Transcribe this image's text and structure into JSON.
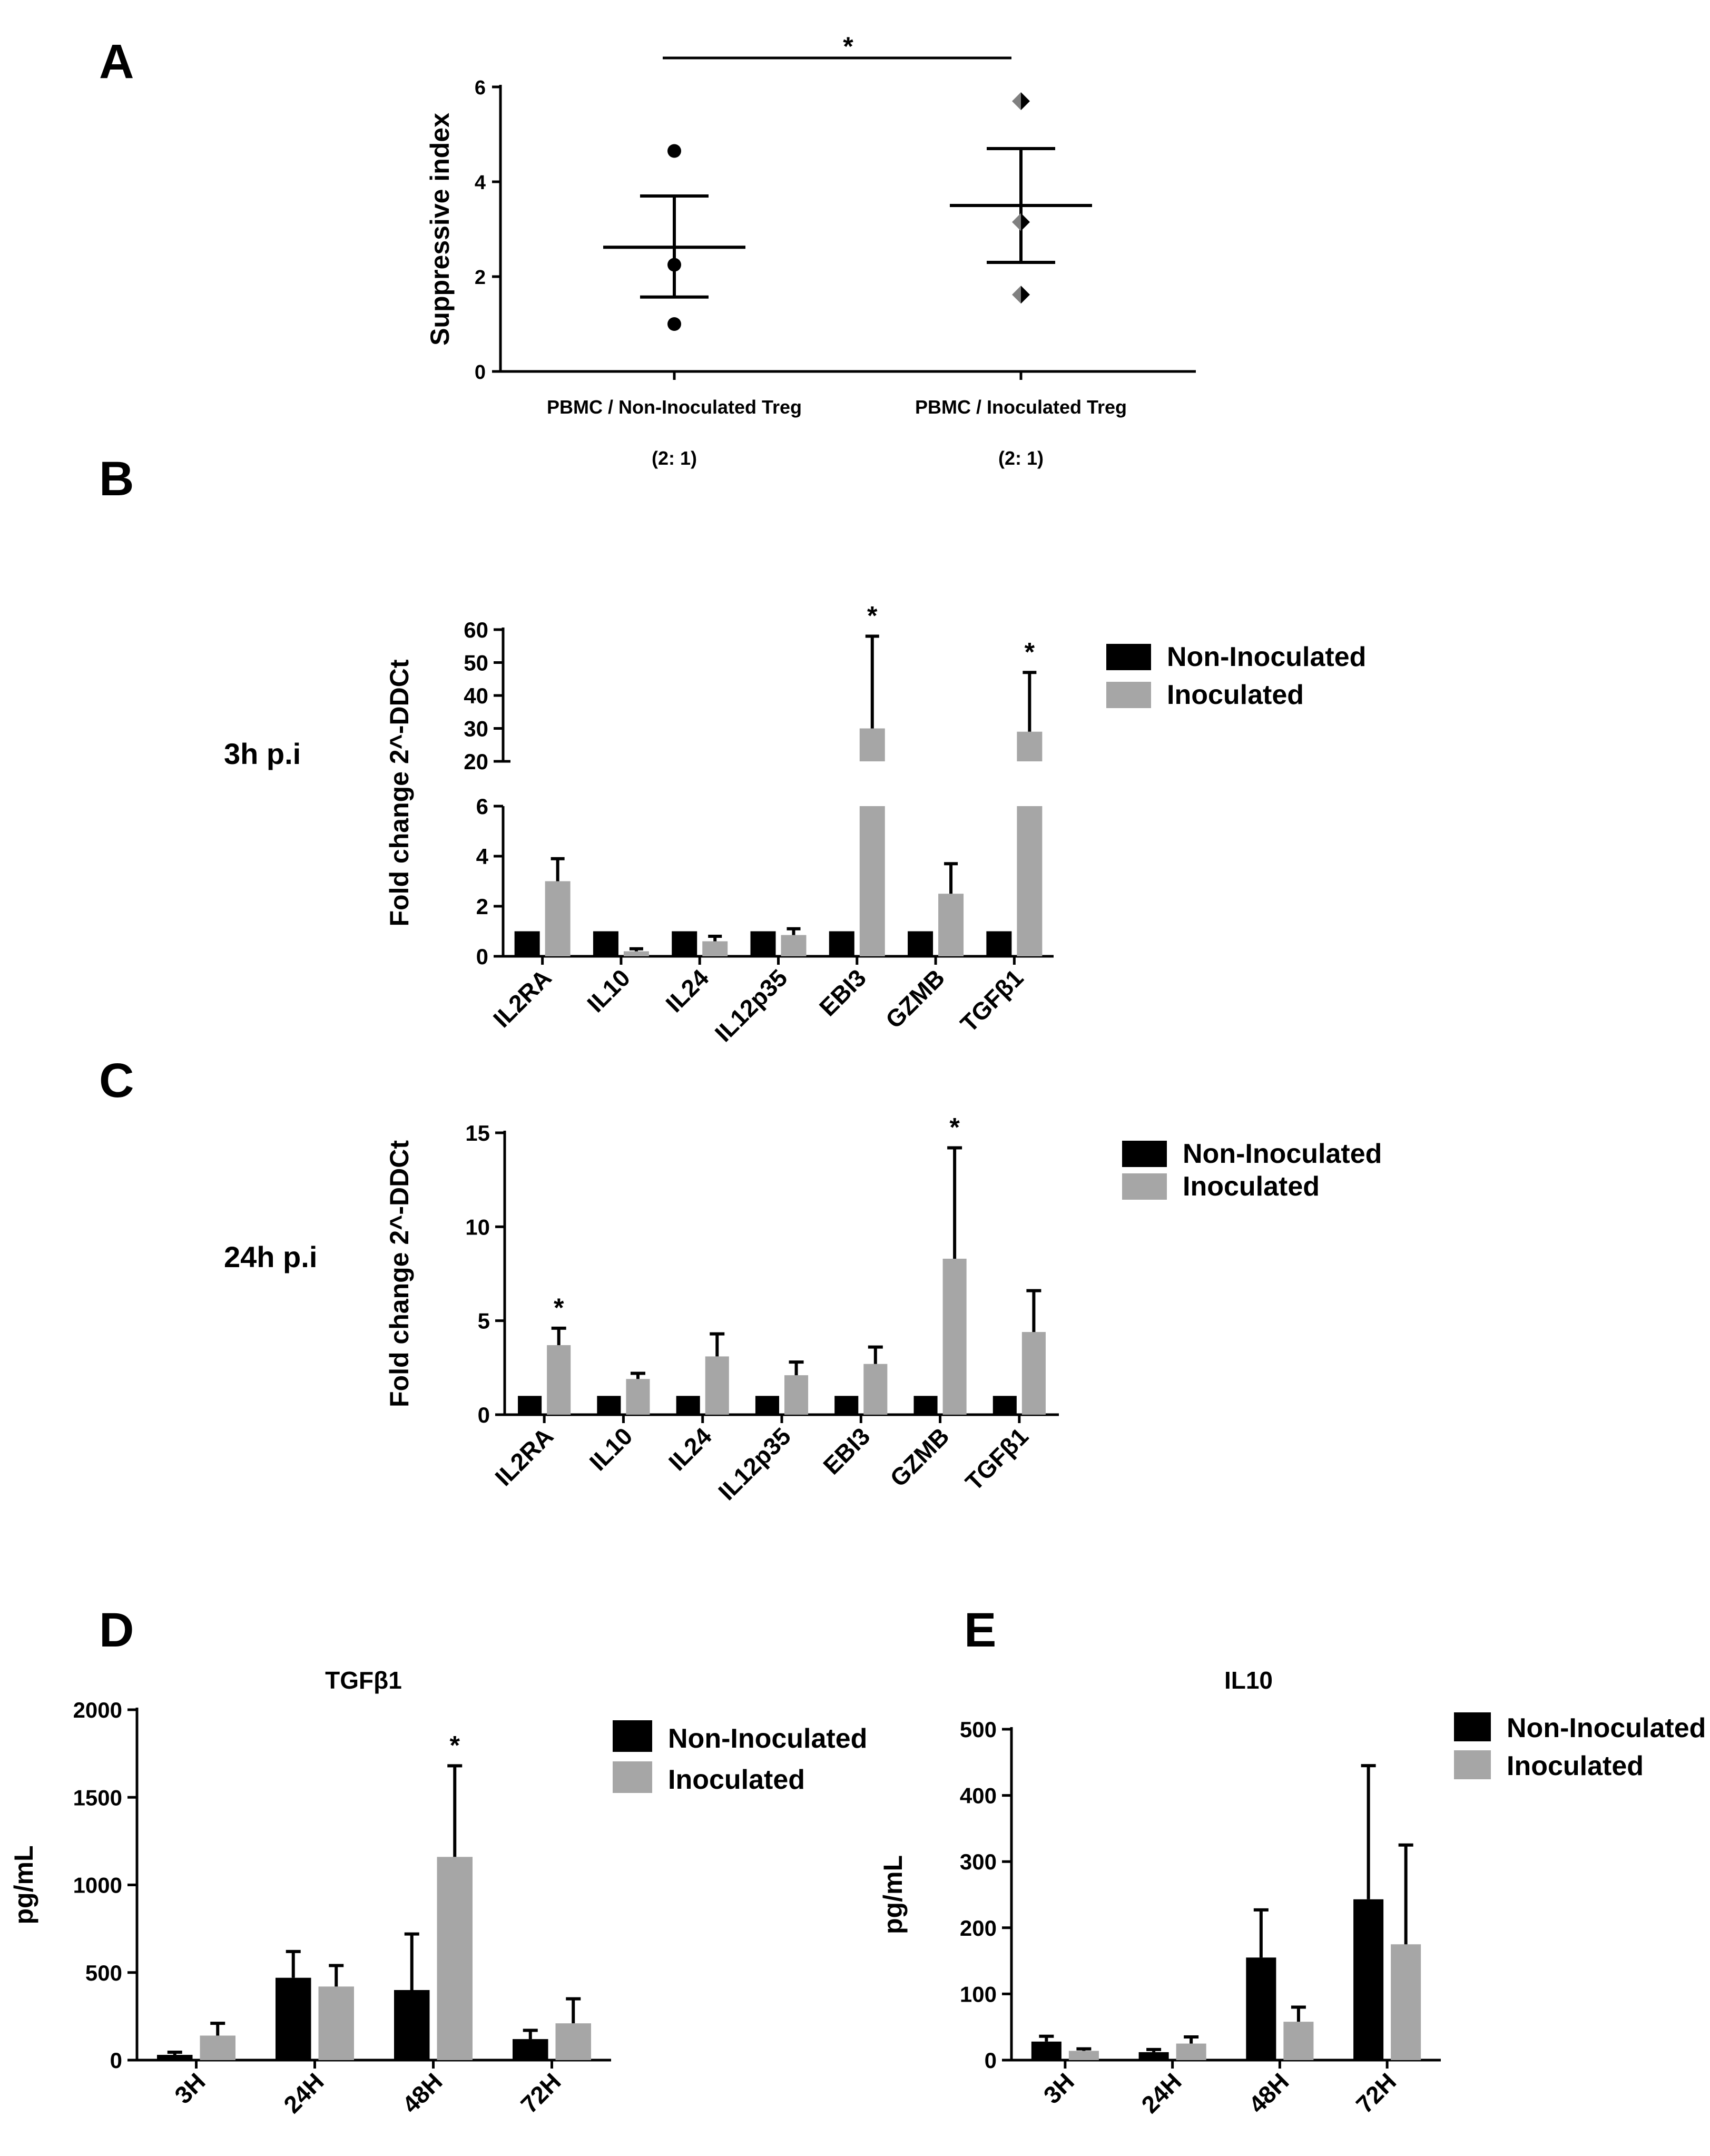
{
  "colors": {
    "non_inoculated": "#000000",
    "inoculated": "#a6a6a6"
  },
  "chart_data": [
    {
      "id": "A",
      "panel_label": "A",
      "type": "scatter",
      "ylabel": "Suppressive index",
      "ylim": [
        0,
        6
      ],
      "yticks": [
        "0",
        "2",
        "4",
        "6"
      ],
      "categories": [
        "PBMC / Non-Inoculated Treg",
        "PBMC / Inoculated Treg"
      ],
      "sublabels": [
        "(2: 1)",
        "(2: 1)"
      ],
      "series": [
        {
          "name": "PBMC / Non-Inoculated Treg",
          "marker": "circle",
          "points": [
            4.65,
            2.25,
            1.0
          ],
          "mean": 2.62,
          "sem_low": 1.57,
          "sem_high": 3.7
        },
        {
          "name": "PBMC / Inoculated Treg",
          "marker": "diamond",
          "points": [
            5.7,
            3.15,
            1.62
          ],
          "mean": 3.5,
          "sem_low": 2.3,
          "sem_high": 4.7
        }
      ],
      "significance": "*"
    },
    {
      "id": "B",
      "panel_label": "B",
      "side_label": "3h p.i",
      "type": "bar",
      "ylabel": "Fold change 2^-DDCt",
      "broken_axis": true,
      "lower_ylim": [
        0,
        6
      ],
      "lower_yticks": [
        "0",
        "2",
        "4",
        "6"
      ],
      "upper_ylim": [
        20,
        60
      ],
      "upper_yticks": [
        "20",
        "30",
        "40",
        "50",
        "60"
      ],
      "categories": [
        "IL2RA",
        "IL10",
        "IL24",
        "IL12p35",
        "EBI3",
        "GZMB",
        "TGFβ1"
      ],
      "series": [
        {
          "name": "Non-Inoculated",
          "values": [
            1,
            1,
            1,
            1,
            1,
            1,
            1
          ],
          "errors": [
            0,
            0,
            0,
            0,
            0,
            0,
            0
          ]
        },
        {
          "name": "Inoculated",
          "values": [
            3.0,
            0.2,
            0.6,
            0.85,
            30,
            2.5,
            29
          ],
          "errors": [
            0.9,
            0.1,
            0.2,
            0.25,
            28,
            1.2,
            18
          ]
        }
      ],
      "significant": [
        false,
        false,
        false,
        false,
        true,
        false,
        true
      ],
      "significance": "*",
      "legend": [
        "Non-Inoculated",
        "Inoculated"
      ]
    },
    {
      "id": "C",
      "panel_label": "C",
      "side_label": "24h p.i",
      "type": "bar",
      "ylabel": "Fold change 2^-DDCt",
      "ylim": [
        0,
        15
      ],
      "yticks": [
        "0",
        "5",
        "10",
        "15"
      ],
      "categories": [
        "IL2RA",
        "IL10",
        "IL24",
        "IL12p35",
        "EBI3",
        "GZMB",
        "TGFβ1"
      ],
      "series": [
        {
          "name": "Non-Inoculated",
          "values": [
            1,
            1,
            1,
            1,
            1,
            1,
            1
          ],
          "errors": [
            0,
            0,
            0,
            0,
            0,
            0,
            0
          ]
        },
        {
          "name": "Inoculated",
          "values": [
            3.7,
            1.9,
            3.1,
            2.1,
            2.7,
            8.3,
            4.4
          ],
          "errors": [
            0.9,
            0.3,
            1.2,
            0.7,
            0.9,
            5.9,
            2.2
          ]
        }
      ],
      "significant": [
        true,
        false,
        false,
        false,
        false,
        true,
        false
      ],
      "significance": "*",
      "legend": [
        "Non-Inoculated",
        "Inoculated"
      ]
    },
    {
      "id": "D",
      "panel_label": "D",
      "type": "bar",
      "title": "TGFβ1",
      "ylabel": "pg/mL",
      "ylim": [
        0,
        2000
      ],
      "yticks": [
        "0",
        "500",
        "1000",
        "1500",
        "2000"
      ],
      "categories": [
        "3H",
        "24H",
        "48H",
        "72H"
      ],
      "series": [
        {
          "name": "Non-Inoculated",
          "values": [
            30,
            470,
            400,
            120
          ],
          "errors": [
            15,
            150,
            320,
            50
          ]
        },
        {
          "name": "Inoculated",
          "values": [
            140,
            420,
            1160,
            210
          ],
          "errors": [
            70,
            120,
            520,
            140
          ]
        }
      ],
      "significant": [
        false,
        false,
        true,
        false
      ],
      "significance": "*",
      "legend": [
        "Non-Inoculated",
        "Inoculated"
      ]
    },
    {
      "id": "E",
      "panel_label": "E",
      "type": "bar",
      "title": "IL10",
      "ylabel": "pg/mL",
      "ylim": [
        0,
        500
      ],
      "yticks": [
        "0",
        "100",
        "200",
        "300",
        "400",
        "500"
      ],
      "categories": [
        "3H",
        "24H",
        "48H",
        "72H"
      ],
      "series": [
        {
          "name": "Non-Inoculated",
          "values": [
            28,
            12,
            155,
            243
          ],
          "errors": [
            8,
            4,
            72,
            202
          ]
        },
        {
          "name": "Inoculated",
          "values": [
            14,
            25,
            58,
            175
          ],
          "errors": [
            3,
            10,
            22,
            150
          ]
        }
      ],
      "significant": [
        false,
        false,
        false,
        false
      ],
      "legend": [
        "Non-Inoculated",
        "Inoculated"
      ]
    }
  ]
}
